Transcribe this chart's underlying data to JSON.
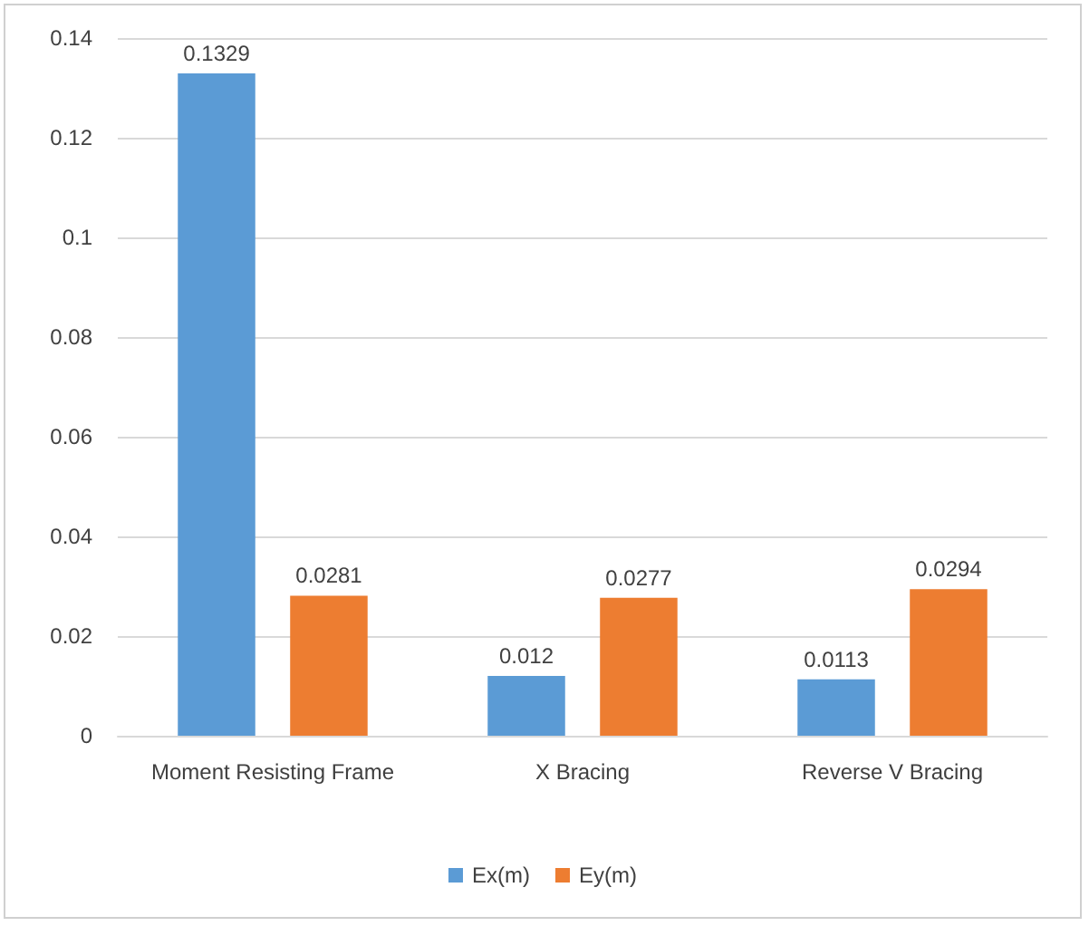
{
  "chart_data": {
    "type": "bar",
    "categories": [
      "Moment Resisting Frame",
      "X Bracing",
      "Reverse V Bracing"
    ],
    "series": [
      {
        "name": "Ex(m)",
        "color": "#5b9bd5",
        "values": [
          0.1329,
          0.012,
          0.0113
        ]
      },
      {
        "name": "Ey(m)",
        "color": "#ed7d31",
        "values": [
          0.0281,
          0.0277,
          0.0294
        ]
      }
    ],
    "ylim": [
      0,
      0.14
    ],
    "yticks": [
      0,
      0.02,
      0.04,
      0.06,
      0.08,
      0.1,
      0.12,
      0.14
    ],
    "grid": "y",
    "legend": "bottom",
    "data_labels": true
  }
}
